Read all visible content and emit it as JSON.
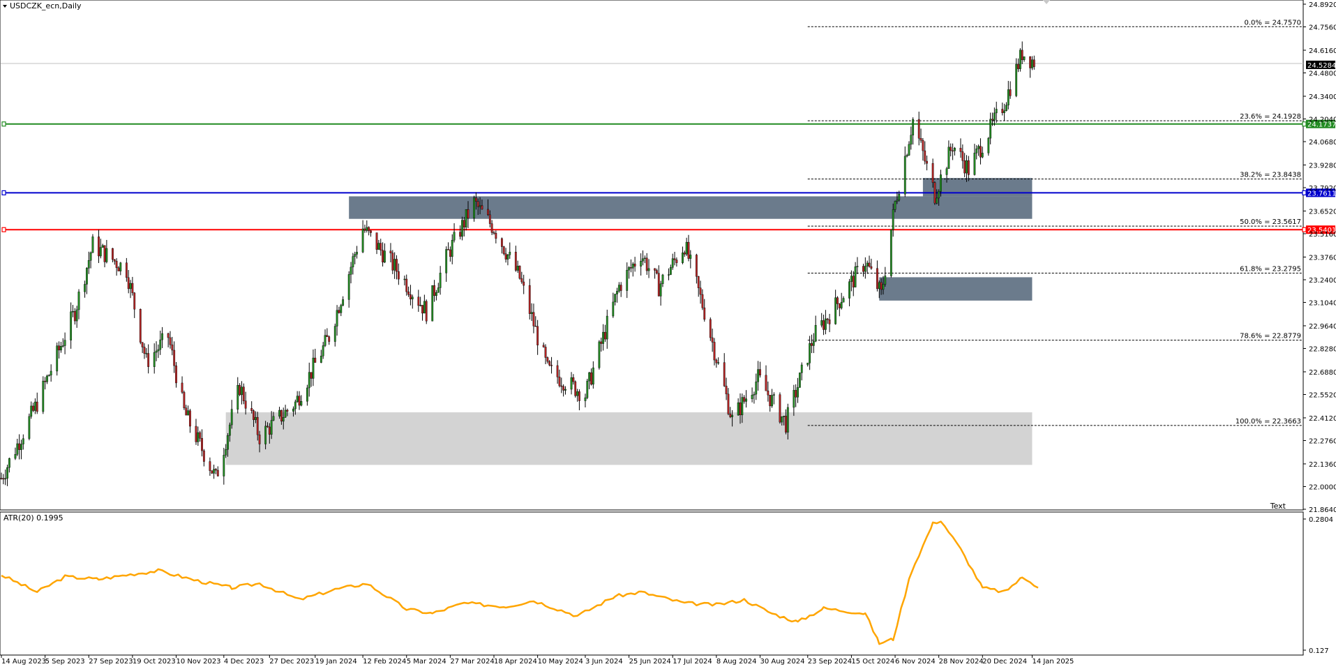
{
  "symbol_title": "USDCZK_ecn,Daily",
  "text_button": "Text",
  "price_axis_ticks": [
    "24.8920",
    "24.7560",
    "24.6160",
    "24.4800",
    "24.3400",
    "24.2040",
    "24.0680",
    "23.9280",
    "23.7920",
    "23.6520",
    "23.5160",
    "23.3760",
    "23.2400",
    "23.1040",
    "22.9640",
    "22.8280",
    "22.6880",
    "22.5520",
    "22.4120",
    "22.2760",
    "22.1360",
    "22.0000",
    "21.8640"
  ],
  "date_axis_ticks": [
    "14 Aug 2023",
    "5 Sep 2023",
    "27 Sep 2023",
    "19 Oct 2023",
    "10 Nov 2023",
    "4 Dec 2023",
    "27 Dec 2023",
    "19 Jan 2024",
    "12 Feb 2024",
    "5 Mar 2024",
    "27 Mar 2024",
    "18 Apr 2024",
    "10 May 2024",
    "3 Jun 2024",
    "25 Jun 2024",
    "17 Jul 2024",
    "8 Aug 2024",
    "30 Aug 2024",
    "23 Sep 2024",
    "15 Oct 2024",
    "6 Nov 2024",
    "28 Nov 2024",
    "20 Dec 2024",
    "14 Jan 2025"
  ],
  "current_price_tag": "24.5284",
  "horizontal_lines": [
    {
      "price": 24.1737,
      "label": "24.1737",
      "color": "#228b22"
    },
    {
      "price": 23.7611,
      "label": "23.7611",
      "color": "#0000cd"
    },
    {
      "price": 23.5401,
      "label": "23.5401",
      "color": "#ff0000"
    }
  ],
  "fib_levels": [
    {
      "label": "0.0% = 24.7570",
      "price": 24.757
    },
    {
      "label": "23.6% = 24.1928",
      "price": 24.1928
    },
    {
      "label": "38.2% = 23.8438",
      "price": 23.8438
    },
    {
      "label": "50.0% = 23.5617",
      "price": 23.5617
    },
    {
      "label": "61.8% = 23.2795",
      "price": 23.2795
    },
    {
      "label": "78.6% = 22.8779",
      "price": 22.8779
    },
    {
      "label": "100.0% = 22.3663",
      "price": 22.3663
    }
  ],
  "zones": [
    {
      "from_date": "2024-02-05",
      "to_date": "2025-01-14",
      "top": 23.74,
      "bottom": 23.605,
      "color": "#6b7b8c"
    },
    {
      "from_date": "2024-11-20",
      "to_date": "2025-01-14",
      "top": 23.85,
      "bottom": 23.74,
      "color": "#6b7b8c"
    },
    {
      "from_date": "2024-10-29",
      "to_date": "2025-01-14",
      "top": 23.255,
      "bottom": 23.115,
      "color": "#6b7b8c"
    },
    {
      "from_date": "2023-12-05",
      "to_date": "2025-01-14",
      "top": 22.445,
      "bottom": 22.13,
      "color": "#d3d3d3"
    }
  ],
  "atr": {
    "label": "ATR(20) 0.1995",
    "ticks": [
      "0.2804",
      "0.127"
    ],
    "color": "#ffa500"
  },
  "chart_data": {
    "type": "candlestick",
    "title": "USDCZK_ecn,Daily",
    "ylim": [
      21.864,
      24.892
    ],
    "x_range": [
      "2023-08-14",
      "2025-01-17"
    ],
    "price_keypoints": [
      [
        "2023-08-14",
        22.05
      ],
      [
        "2023-09-01",
        22.5
      ],
      [
        "2023-09-20",
        23.05
      ],
      [
        "2023-09-29",
        23.45
      ],
      [
        "2023-10-16",
        23.3
      ],
      [
        "2023-10-26",
        22.75
      ],
      [
        "2023-11-06",
        22.9
      ],
      [
        "2023-11-14",
        22.45
      ],
      [
        "2023-11-30",
        22.05
      ],
      [
        "2023-12-12",
        22.6
      ],
      [
        "2023-12-22",
        22.3
      ],
      [
        "2024-01-09",
        22.5
      ],
      [
        "2024-01-26",
        22.9
      ],
      [
        "2024-02-12",
        23.55
      ],
      [
        "2024-02-29",
        23.3
      ],
      [
        "2024-03-15",
        23.05
      ],
      [
        "2024-03-26",
        23.4
      ],
      [
        "2024-04-08",
        23.7
      ],
      [
        "2024-04-18",
        23.55
      ],
      [
        "2024-05-01",
        23.25
      ],
      [
        "2024-05-15",
        22.7
      ],
      [
        "2024-06-03",
        22.55
      ],
      [
        "2024-06-20",
        23.2
      ],
      [
        "2024-07-01",
        23.4
      ],
      [
        "2024-07-10",
        23.2
      ],
      [
        "2024-07-23",
        23.45
      ],
      [
        "2024-08-02",
        23.05
      ],
      [
        "2024-08-16",
        22.4
      ],
      [
        "2024-08-29",
        22.65
      ],
      [
        "2024-09-12",
        22.38
      ],
      [
        "2024-09-26",
        22.9
      ],
      [
        "2024-10-08",
        23.1
      ],
      [
        "2024-10-22",
        23.35
      ],
      [
        "2024-10-30",
        23.15
      ],
      [
        "2024-11-06",
        23.7
      ],
      [
        "2024-11-15",
        24.2
      ],
      [
        "2024-11-26",
        23.75
      ],
      [
        "2024-12-05",
        24.05
      ],
      [
        "2024-12-13",
        23.9
      ],
      [
        "2024-12-31",
        24.3
      ],
      [
        "2025-01-09",
        24.6
      ],
      [
        "2025-01-17",
        24.53
      ]
    ],
    "atr_keypoints": [
      [
        "2023-08-14",
        0.215
      ],
      [
        "2023-09-01",
        0.195
      ],
      [
        "2023-09-15",
        0.213
      ],
      [
        "2023-10-02",
        0.21
      ],
      [
        "2023-10-16",
        0.215
      ],
      [
        "2023-11-01",
        0.22
      ],
      [
        "2023-11-21",
        0.208
      ],
      [
        "2023-12-08",
        0.2
      ],
      [
        "2023-12-22",
        0.205
      ],
      [
        "2024-01-11",
        0.186
      ],
      [
        "2024-01-29",
        0.198
      ],
      [
        "2024-02-14",
        0.205
      ],
      [
        "2024-03-05",
        0.175
      ],
      [
        "2024-03-18",
        0.17
      ],
      [
        "2024-04-03",
        0.182
      ],
      [
        "2024-04-24",
        0.178
      ],
      [
        "2024-05-08",
        0.185
      ],
      [
        "2024-05-30",
        0.167
      ],
      [
        "2024-06-18",
        0.19
      ],
      [
        "2024-07-01",
        0.195
      ],
      [
        "2024-07-23",
        0.182
      ],
      [
        "2024-08-08",
        0.18
      ],
      [
        "2024-08-22",
        0.186
      ],
      [
        "2024-09-05",
        0.17
      ],
      [
        "2024-09-18",
        0.16
      ],
      [
        "2024-10-01",
        0.176
      ],
      [
        "2024-10-22",
        0.17
      ],
      [
        "2024-10-29",
        0.135
      ],
      [
        "2024-11-05",
        0.14
      ],
      [
        "2024-11-14",
        0.218
      ],
      [
        "2024-11-25",
        0.275
      ],
      [
        "2024-11-29",
        0.279
      ],
      [
        "2024-12-09",
        0.245
      ],
      [
        "2024-12-20",
        0.2
      ],
      [
        "2024-12-31",
        0.195
      ],
      [
        "2025-01-09",
        0.212
      ],
      [
        "2025-01-13",
        0.208
      ],
      [
        "2025-01-17",
        0.2
      ]
    ]
  }
}
